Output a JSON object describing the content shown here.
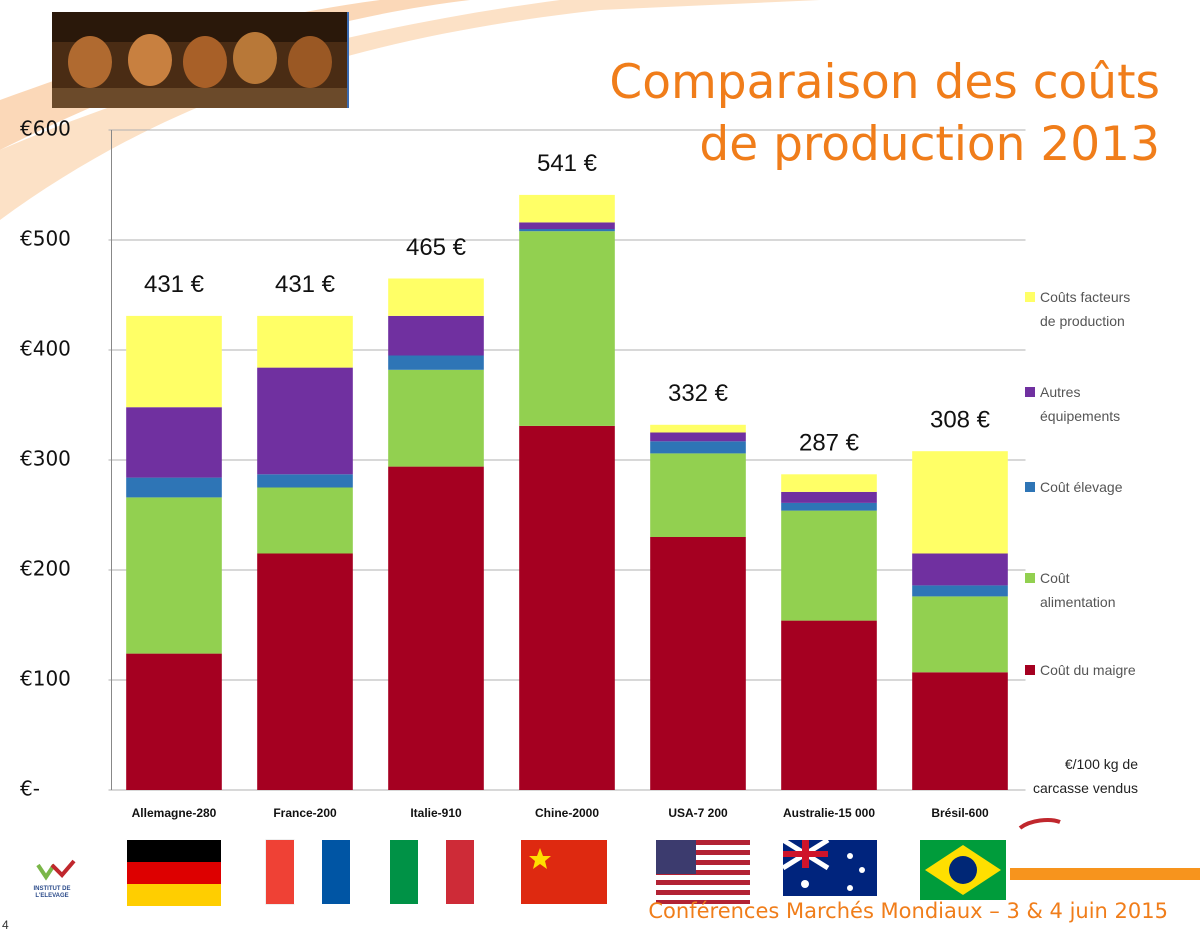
{
  "chart_data": {
    "type": "stacked_bar",
    "title": "Comparaison des coûts de production 2013",
    "footer": "Conférences Marchés Mondiaux – 3 & 4 juin 2015",
    "unit_note": "€/100 kg de carcasse vendus",
    "logo_text": "INSTITUT DE L'ELEVAGE",
    "page_number": "4",
    "categories": [
      "Allemagne-280",
      "France-200",
      "Italie-910",
      "Chine-2000",
      "USA-7 200",
      "Australie-15 000",
      "Brésil-600"
    ],
    "series": [
      {
        "name": "Coût du maigre",
        "color": "#a50021",
        "values": [
          124,
          215,
          294,
          331,
          230,
          154,
          107
        ]
      },
      {
        "name": "Coût alimentation",
        "color": "#92d050",
        "values": [
          142,
          60,
          88,
          177,
          76,
          100,
          69
        ]
      },
      {
        "name": "Coût élevage",
        "color": "#2e75b6",
        "values": [
          18,
          12,
          13,
          2,
          11,
          7,
          10
        ]
      },
      {
        "name": "Autres équipements",
        "color": "#7030a0",
        "values": [
          64,
          97,
          36,
          6,
          8,
          10,
          29
        ]
      },
      {
        "name": "Coûts facteurs de production",
        "color": "#ffff66",
        "values": [
          83,
          47,
          34,
          25,
          7,
          16,
          93
        ]
      }
    ],
    "totals": [
      431,
      431,
      465,
      541,
      332,
      287,
      308
    ],
    "total_labels": [
      "431 €",
      "431 €",
      "465 €",
      "541 €",
      "332 €",
      "287 €",
      "308 €"
    ],
    "ylim": [
      0,
      600
    ],
    "yticks": [
      {
        "value": 0,
        "label": "€-"
      },
      {
        "value": 100,
        "label": "€100"
      },
      {
        "value": 200,
        "label": "€200"
      },
      {
        "value": 300,
        "label": "€300"
      },
      {
        "value": 400,
        "label": "€400"
      },
      {
        "value": 500,
        "label": "€500"
      },
      {
        "value": 600,
        "label": "€600"
      }
    ],
    "grid": true
  }
}
